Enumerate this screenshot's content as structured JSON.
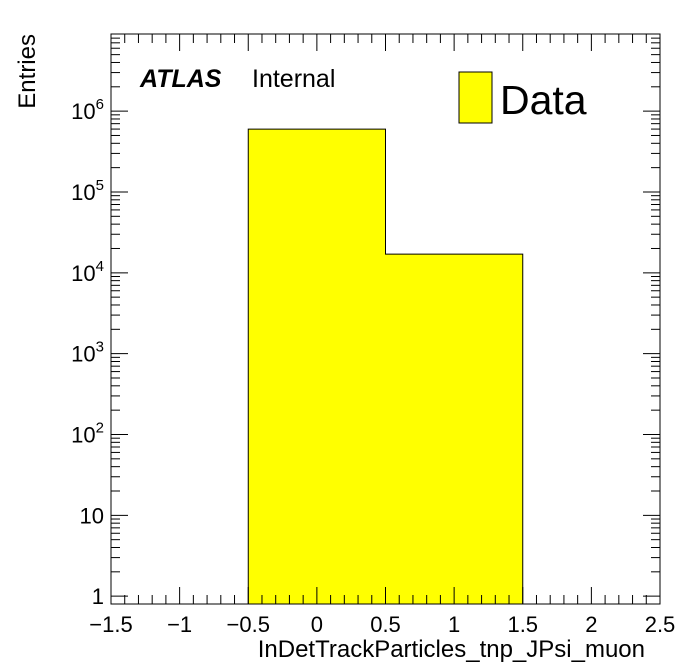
{
  "chart_data": {
    "type": "bar",
    "histogram": true,
    "title": "",
    "xlabel": "InDetTrackParticles_tnp_JPsi_muon",
    "ylabel": "Entries",
    "xlim": [
      -1.5,
      2.5
    ],
    "ylim": [
      0.8,
      9000000
    ],
    "yscale": "log",
    "x_ticks": [
      "−1.5",
      "−1",
      "−0.5",
      "0",
      "0.5",
      "1",
      "1.5",
      "2",
      "2.5"
    ],
    "y_ticks": [
      {
        "value": 1,
        "base": "1",
        "exp": ""
      },
      {
        "value": 10,
        "base": "10",
        "exp": ""
      },
      {
        "value": 100,
        "base": "10",
        "exp": "2"
      },
      {
        "value": 1000,
        "base": "10",
        "exp": "3"
      },
      {
        "value": 10000,
        "base": "10",
        "exp": "4"
      },
      {
        "value": 100000,
        "base": "10",
        "exp": "5"
      },
      {
        "value": 1000000,
        "base": "10",
        "exp": "6"
      }
    ],
    "bins": [
      {
        "low": -0.5,
        "high": 0.5,
        "value": 600000
      },
      {
        "low": 0.5,
        "high": 1.5,
        "value": 17000
      }
    ],
    "series": [
      {
        "name": "Data",
        "color": "#ffff00"
      }
    ],
    "legend_position": "top-right",
    "grid": false
  },
  "labels": {
    "atlas": "ATLAS",
    "status": "Internal"
  }
}
